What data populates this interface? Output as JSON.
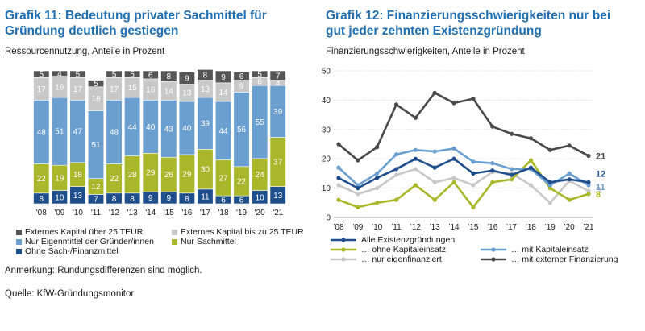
{
  "charts": [
    {
      "title": "Grafik 11: Bedeutung privater Sachmittel für Gründung deutlich gestiegen",
      "subtitle": "Ressourcennutzung, Anteile in Prozent",
      "note": "Anmerkung: Rundungsdifferenzen sind möglich.",
      "source": "Quelle: KfW-Gründungsmonitor."
    },
    {
      "title": "Grafik 12: Finanzierungsschwierigkeiten nur bei gut jeder zehnten Existenzgründung",
      "subtitle": "Finanzierungsschwierigkeiten, Anteile in Prozent"
    }
  ],
  "chart_data": [
    {
      "type": "bar",
      "stacked": true,
      "categories": [
        "'08",
        "'09",
        "'10",
        "'11",
        "'12",
        "'13",
        "'14",
        "'15",
        "'16",
        "'17",
        "'18",
        "'19",
        "'20",
        "'21"
      ],
      "series": [
        {
          "name": "Ohne Sach-/Finanzmittel",
          "color": "#1f4e8c",
          "values": [
            8,
            10,
            13,
            7,
            8,
            8,
            9,
            9,
            8,
            11,
            6,
            6,
            10,
            13
          ]
        },
        {
          "name": "Nur Sachmittel",
          "color": "#a8b82a",
          "values": [
            22,
            19,
            18,
            12,
            22,
            28,
            29,
            26,
            29,
            30,
            27,
            22,
            24,
            37
          ]
        },
        {
          "name": "Nur Eigenmittel der Gründer/innen",
          "color": "#6a9fd0",
          "values": [
            48,
            51,
            47,
            51,
            48,
            44,
            40,
            43,
            40,
            39,
            44,
            56,
            55,
            39
          ]
        },
        {
          "name": "Externes Kapital bis zu 25 TEUR",
          "color": "#c8c8c8",
          "values": [
            17,
            16,
            17,
            18,
            17,
            15,
            16,
            14,
            13,
            13,
            14,
            9,
            6,
            4
          ]
        },
        {
          "name": "Externes Kapital über 25 TEUR",
          "color": "#555555",
          "values": [
            5,
            4,
            5,
            5,
            5,
            5,
            6,
            8,
            9,
            8,
            9,
            6,
            5,
            7
          ]
        }
      ],
      "legend_order": [
        "Externes Kapital über 25 TEUR",
        "Externes Kapital bis zu 25 TEUR",
        "Nur Eigenmittel der Gründer/innen",
        "Nur Sachmittel",
        "Ohne Sach-/Finanzmittel"
      ],
      "ylim": [
        0,
        100
      ]
    },
    {
      "type": "line",
      "x": [
        "'08",
        "'09",
        "'10",
        "'11",
        "'12",
        "'13",
        "'14",
        "'15",
        "'16",
        "'17",
        "'18",
        "'19",
        "'20",
        "'21"
      ],
      "series": [
        {
          "name": "Alle Existenzgründungen",
          "color": "#1f4e8c",
          "values": [
            13.5,
            10,
            13.5,
            16.5,
            20,
            17,
            20,
            15,
            16,
            14.5,
            17,
            12,
            13,
            12
          ],
          "end_label": "12"
        },
        {
          "name": "… ohne Kapitaleinsatz",
          "color": "#a8b82a",
          "values": [
            6,
            3.5,
            5,
            6,
            11,
            6,
            12,
            3.5,
            12,
            13,
            19.5,
            10,
            6,
            8
          ],
          "end_label": "8"
        },
        {
          "name": "… nur eigenfinanziert",
          "color": "#c8c8c8",
          "values": [
            11,
            8,
            10,
            14.5,
            16.5,
            12,
            13.5,
            11,
            15.5,
            15,
            11,
            5,
            12.5,
            9
          ],
          "end_label": "9"
        },
        {
          "name": "… mit Kapitaleinsatz",
          "color": "#6a9fd0",
          "values": [
            17,
            11,
            15,
            21.5,
            23,
            22.5,
            23.5,
            19,
            18.5,
            16.5,
            16.5,
            11,
            15,
            11
          ],
          "end_label": "11"
        },
        {
          "name": "… mit externer Finanzierung",
          "color": "#4a4a4a",
          "values": [
            25,
            19.5,
            24,
            38.5,
            34,
            42.5,
            39,
            40.5,
            31,
            28.5,
            27,
            23,
            24.5,
            21
          ],
          "end_label": "21"
        }
      ],
      "ylim": [
        0,
        50
      ],
      "yticks": [
        0,
        10,
        20,
        30,
        40,
        50
      ],
      "grid": true
    }
  ]
}
